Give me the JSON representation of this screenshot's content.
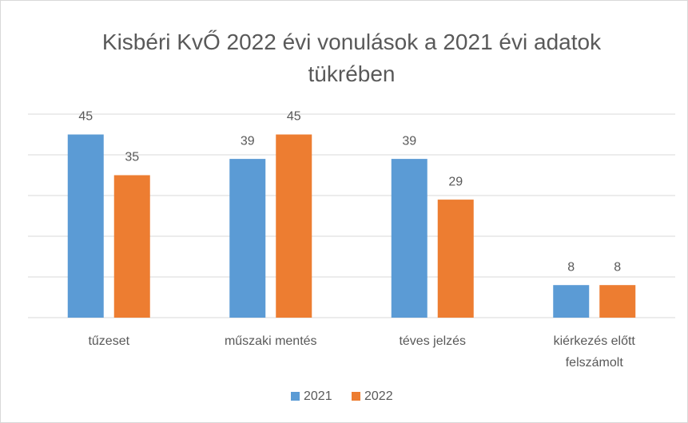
{
  "chart_data": {
    "type": "bar",
    "title": "Kisbéri KvŐ 2022 évi vonulások a 2021 évi adatok tükrében",
    "categories": [
      "tűzeset",
      "műszaki mentés",
      "téves jelzés",
      "kiérkezés előtt felszámolt"
    ],
    "series": [
      {
        "name": "2021",
        "color": "#5b9bd5",
        "values": [
          45,
          39,
          39,
          8
        ]
      },
      {
        "name": "2022",
        "color": "#ed7d31",
        "values": [
          35,
          45,
          29,
          8
        ]
      }
    ],
    "ylim": [
      0,
      50
    ],
    "yticks": [
      0,
      10,
      20,
      30,
      40,
      50
    ],
    "grid": true,
    "legend": "bottom"
  }
}
